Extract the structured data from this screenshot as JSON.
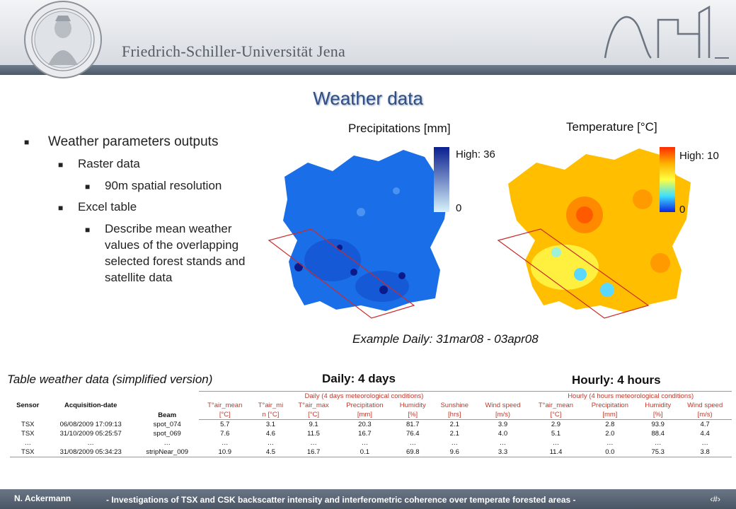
{
  "header": {
    "university": "Friedrich-Schiller-Universität Jena"
  },
  "title": "Weather data",
  "bullets": {
    "l1": "Weather parameters outputs",
    "l2a": "Raster data",
    "l3a": "90m spatial resolution",
    "l2b": "Excel table",
    "l3b": "Describe mean weather values of the overlapping selected forest stands and satellite data"
  },
  "maps": {
    "precip": {
      "title": "Precipitations [mm]",
      "high": "High: 36",
      "low": "0",
      "colors": [
        "#0a1f8f",
        "#d8f3fb"
      ]
    },
    "temp": {
      "title": "Temperature [°C]",
      "high": "High: 10",
      "low": "0"
    },
    "caption": "Example Daily: 31mar08 - 03apr08"
  },
  "table_caption": "Table weather data (simplified version)",
  "daily_label": "Daily: 4 days",
  "hourly_label": "Hourly: 4 hours",
  "table": {
    "col_sensor": "Sensor",
    "col_acq": "Acquisition-date",
    "col_beam": "Beam",
    "daily_group": "Daily (4 days meteorological conditions)",
    "hourly_group": "Hourly (4 hours meteorological conditions)",
    "daily_cols": [
      "T°air_mean",
      "T°air_mi",
      "T°air_max",
      "Precipitation",
      "Humidity",
      "Sunshine",
      "Wind speed"
    ],
    "daily_units": [
      "[°C]",
      "n [°C]",
      "[°C]",
      "[mm]",
      "[%]",
      "[hrs]",
      "[m/s)"
    ],
    "hourly_cols": [
      "T°air_mean",
      "Precipitation",
      "Humidity",
      "Wind speed"
    ],
    "hourly_units": [
      "[°C]",
      "[mm]",
      "[%]",
      "[m/s)"
    ],
    "rows": [
      [
        "TSX",
        "06/08/2009 17:09:13",
        "spot_074",
        "5.7",
        "3.1",
        "9.1",
        "20.3",
        "81.7",
        "2.1",
        "3.9",
        "2.9",
        "2.8",
        "93.9",
        "4.7"
      ],
      [
        "TSX",
        "31/10/2009 05:25:57",
        "spot_069",
        "7.6",
        "4.6",
        "11.5",
        "16.7",
        "76.4",
        "2.1",
        "4.0",
        "5.1",
        "2.0",
        "88.4",
        "4.4"
      ],
      [
        "…",
        "…",
        "…",
        "…",
        "…",
        "…",
        "…",
        "…",
        "…",
        "…",
        "…",
        "…",
        "…",
        "…"
      ],
      [
        "TSX",
        "31/08/2009 05:34:23",
        "stripNear_009",
        "10.9",
        "4.5",
        "16.7",
        "0.1",
        "69.8",
        "9.6",
        "3.3",
        "11.4",
        "0.0",
        "75.3",
        "3.8"
      ]
    ]
  },
  "footer": {
    "author": "N. Ackermann",
    "text": "- Investigations of TSX and CSK backscatter intensity and interferometric coherence over temperate forested areas -",
    "page": "‹#›"
  }
}
